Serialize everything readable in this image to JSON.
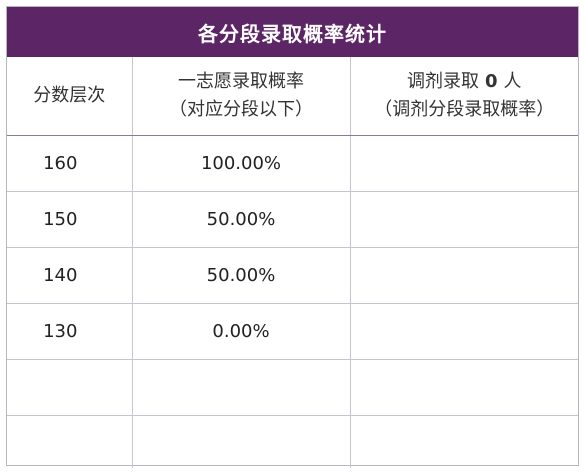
{
  "title": "各分段录取概率统计",
  "headers": {
    "col1": "分数层次",
    "col2_line1": "一志愿录取概率",
    "col2_line2": "（对应分段以下）",
    "col3_prefix": "调剂录取",
    "col3_count": "0",
    "col3_suffix": "人",
    "col3_line2": "（调剂分段录取概率）"
  },
  "rows": [
    {
      "score": "160",
      "rate": "100.00%",
      "adjust": ""
    },
    {
      "score": "150",
      "rate": "50.00%",
      "adjust": ""
    },
    {
      "score": "140",
      "rate": "50.00%",
      "adjust": ""
    },
    {
      "score": "130",
      "rate": "0.00%",
      "adjust": ""
    },
    {
      "score": "",
      "rate": "",
      "adjust": ""
    },
    {
      "score": "",
      "rate": "",
      "adjust": ""
    }
  ]
}
